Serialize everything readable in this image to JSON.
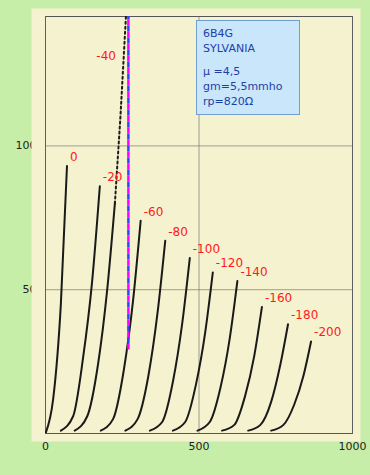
{
  "chart_data": {
    "type": "line",
    "xlim": [
      0,
      1000
    ],
    "xticks": [
      0,
      500,
      1000
    ],
    "ylim": [
      0,
      145
    ],
    "yticks": [
      50,
      100
    ],
    "grid": true,
    "color": "#1a1a1a",
    "series": [
      {
        "name": "0",
        "x": [
          0,
          25,
          50,
          70
        ],
        "values": [
          0,
          12,
          45,
          93
        ]
      },
      {
        "name": "-20",
        "x": [
          50,
          90,
          122,
          152,
          177
        ],
        "values": [
          1,
          6,
          26,
          53,
          86
        ]
      },
      {
        "name": "-40",
        "x": [
          95,
          136,
          171,
          201,
          226
        ],
        "values": [
          1,
          6,
          24,
          50,
          80
        ],
        "extension": {
          "x": [
            226,
            244,
            262
          ],
          "values": [
            80,
            110,
            145
          ],
          "line_style": "dotted"
        }
      },
      {
        "name": "-60",
        "x": [
          180,
          220,
          255,
          285,
          310
        ],
        "values": [
          1,
          5,
          22,
          46,
          74
        ]
      },
      {
        "name": "-80",
        "x": [
          260,
          300,
          335,
          365,
          390
        ],
        "values": [
          1,
          5,
          20,
          42,
          67
        ]
      },
      {
        "name": "-100",
        "x": [
          340,
          380,
          415,
          445,
          470
        ],
        "values": [
          1,
          4,
          18,
          38,
          61
        ]
      },
      {
        "name": "-120",
        "x": [
          415,
          455,
          490,
          520,
          545
        ],
        "values": [
          1,
          4,
          17,
          35,
          56
        ]
      },
      {
        "name": "-140",
        "x": [
          495,
          535,
          570,
          600,
          625
        ],
        "values": [
          1,
          4,
          16,
          33,
          53
        ]
      },
      {
        "name": "-160",
        "x": [
          575,
          615,
          650,
          680,
          705
        ],
        "values": [
          1,
          3,
          13,
          27,
          44
        ]
      },
      {
        "name": "-180",
        "x": [
          660,
          700,
          735,
          765,
          790
        ],
        "values": [
          1,
          3,
          11,
          24,
          38
        ]
      },
      {
        "name": "-200",
        "x": [
          735,
          775,
          810,
          840,
          865
        ],
        "values": [
          1,
          3,
          10,
          20,
          32
        ]
      }
    ],
    "vertical_line": {
      "x": 270,
      "y": [
        29,
        145
      ],
      "colors": [
        "#ff00ff",
        "#3344ff"
      ],
      "line_style": "dashed"
    },
    "info_box": {
      "lines": [
        "6B4G",
        "SYLVANIA",
        "μ =4,5",
        "gm=5,5mmho",
        "rp=820Ω"
      ]
    }
  }
}
